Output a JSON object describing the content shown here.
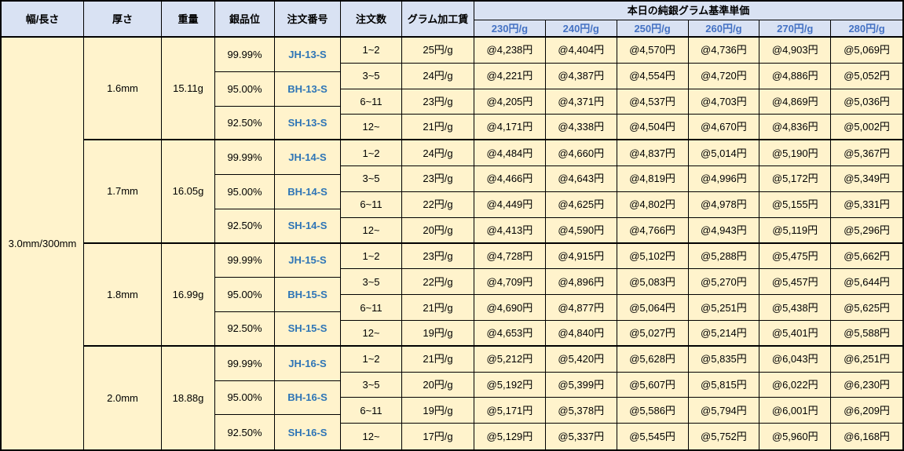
{
  "table": {
    "headers": {
      "width_length": "幅/長さ",
      "thickness": "厚さ",
      "weight": "重量",
      "grade": "銀品位",
      "order_no": "注文番号",
      "qty": "注文数",
      "fee": "グラム加工賃",
      "price_group": "本日の純銀グラム基準単価",
      "price_tiers": [
        "230円/g",
        "240円/g",
        "250円/g",
        "260円/g",
        "270円/g",
        "280円/g"
      ]
    },
    "width_length_value": "3.0mm/300mm",
    "groups": [
      {
        "thickness": "1.6mm",
        "weight": "15.11g",
        "grades": [
          {
            "grade": "99.99%",
            "order_no": "JH-13-S"
          },
          {
            "grade": "95.00%",
            "order_no": "BH-13-S"
          },
          {
            "grade": "92.50%",
            "order_no": "SH-13-S"
          }
        ],
        "rows": [
          {
            "qty": "1~2",
            "fee": "25円/g",
            "prices": [
              "@4,238円",
              "@4,404円",
              "@4,570円",
              "@4,736円",
              "@4,903円",
              "@5,069円"
            ]
          },
          {
            "qty": "3~5",
            "fee": "24円/g",
            "prices": [
              "@4,221円",
              "@4,387円",
              "@4,554円",
              "@4,720円",
              "@4,886円",
              "@5,052円"
            ]
          },
          {
            "qty": "6~11",
            "fee": "23円/g",
            "prices": [
              "@4,205円",
              "@4,371円",
              "@4,537円",
              "@4,703円",
              "@4,869円",
              "@5,036円"
            ]
          },
          {
            "qty": "12~",
            "fee": "21円/g",
            "prices": [
              "@4,171円",
              "@4,338円",
              "@4,504円",
              "@4,670円",
              "@4,836円",
              "@5,002円"
            ]
          }
        ]
      },
      {
        "thickness": "1.7mm",
        "weight": "16.05g",
        "grades": [
          {
            "grade": "99.99%",
            "order_no": "JH-14-S"
          },
          {
            "grade": "95.00%",
            "order_no": "BH-14-S"
          },
          {
            "grade": "92.50%",
            "order_no": "SH-14-S"
          }
        ],
        "rows": [
          {
            "qty": "1~2",
            "fee": "24円/g",
            "prices": [
              "@4,484円",
              "@4,660円",
              "@4,837円",
              "@5,014円",
              "@5,190円",
              "@5,367円"
            ]
          },
          {
            "qty": "3~5",
            "fee": "23円/g",
            "prices": [
              "@4,466円",
              "@4,643円",
              "@4,819円",
              "@4,996円",
              "@5,172円",
              "@5,349円"
            ]
          },
          {
            "qty": "6~11",
            "fee": "22円/g",
            "prices": [
              "@4,449円",
              "@4,625円",
              "@4,802円",
              "@4,978円",
              "@5,155円",
              "@5,331円"
            ]
          },
          {
            "qty": "12~",
            "fee": "20円/g",
            "prices": [
              "@4,413円",
              "@4,590円",
              "@4,766円",
              "@4,943円",
              "@5,119円",
              "@5,296円"
            ]
          }
        ]
      },
      {
        "thickness": "1.8mm",
        "weight": "16.99g",
        "grades": [
          {
            "grade": "99.99%",
            "order_no": "JH-15-S"
          },
          {
            "grade": "95.00%",
            "order_no": "BH-15-S"
          },
          {
            "grade": "92.50%",
            "order_no": "SH-15-S"
          }
        ],
        "rows": [
          {
            "qty": "1~2",
            "fee": "23円/g",
            "prices": [
              "@4,728円",
              "@4,915円",
              "@5,102円",
              "@5,288円",
              "@5,475円",
              "@5,662円"
            ]
          },
          {
            "qty": "3~5",
            "fee": "22円/g",
            "prices": [
              "@4,709円",
              "@4,896円",
              "@5,083円",
              "@5,270円",
              "@5,457円",
              "@5,644円"
            ]
          },
          {
            "qty": "6~11",
            "fee": "21円/g",
            "prices": [
              "@4,690円",
              "@4,877円",
              "@5,064円",
              "@5,251円",
              "@5,438円",
              "@5,625円"
            ]
          },
          {
            "qty": "12~",
            "fee": "19円/g",
            "prices": [
              "@4,653円",
              "@4,840円",
              "@5,027円",
              "@5,214円",
              "@5,401円",
              "@5,588円"
            ]
          }
        ]
      },
      {
        "thickness": "2.0mm",
        "weight": "18.88g",
        "grades": [
          {
            "grade": "99.99%",
            "order_no": "JH-16-S"
          },
          {
            "grade": "95.00%",
            "order_no": "BH-16-S"
          },
          {
            "grade": "92.50%",
            "order_no": "SH-16-S"
          }
        ],
        "rows": [
          {
            "qty": "1~2",
            "fee": "21円/g",
            "prices": [
              "@5,212円",
              "@5,420円",
              "@5,628円",
              "@5,835円",
              "@6,043円",
              "@6,251円"
            ]
          },
          {
            "qty": "3~5",
            "fee": "20円/g",
            "prices": [
              "@5,192円",
              "@5,399円",
              "@5,607円",
              "@5,815円",
              "@6,022円",
              "@6,230円"
            ]
          },
          {
            "qty": "6~11",
            "fee": "19円/g",
            "prices": [
              "@5,171円",
              "@5,378円",
              "@5,586円",
              "@5,794円",
              "@6,001円",
              "@6,209円"
            ]
          },
          {
            "qty": "12~",
            "fee": "17円/g",
            "prices": [
              "@5,129円",
              "@5,337円",
              "@5,545円",
              "@5,752円",
              "@5,960円",
              "@6,168円"
            ]
          }
        ]
      }
    ]
  },
  "colors": {
    "header_bg": "#D9E2F3",
    "body_bg": "#FFF3CC",
    "border": "#000000",
    "tier_text": "#4472C4",
    "order_no_text": "#2E75B6"
  }
}
